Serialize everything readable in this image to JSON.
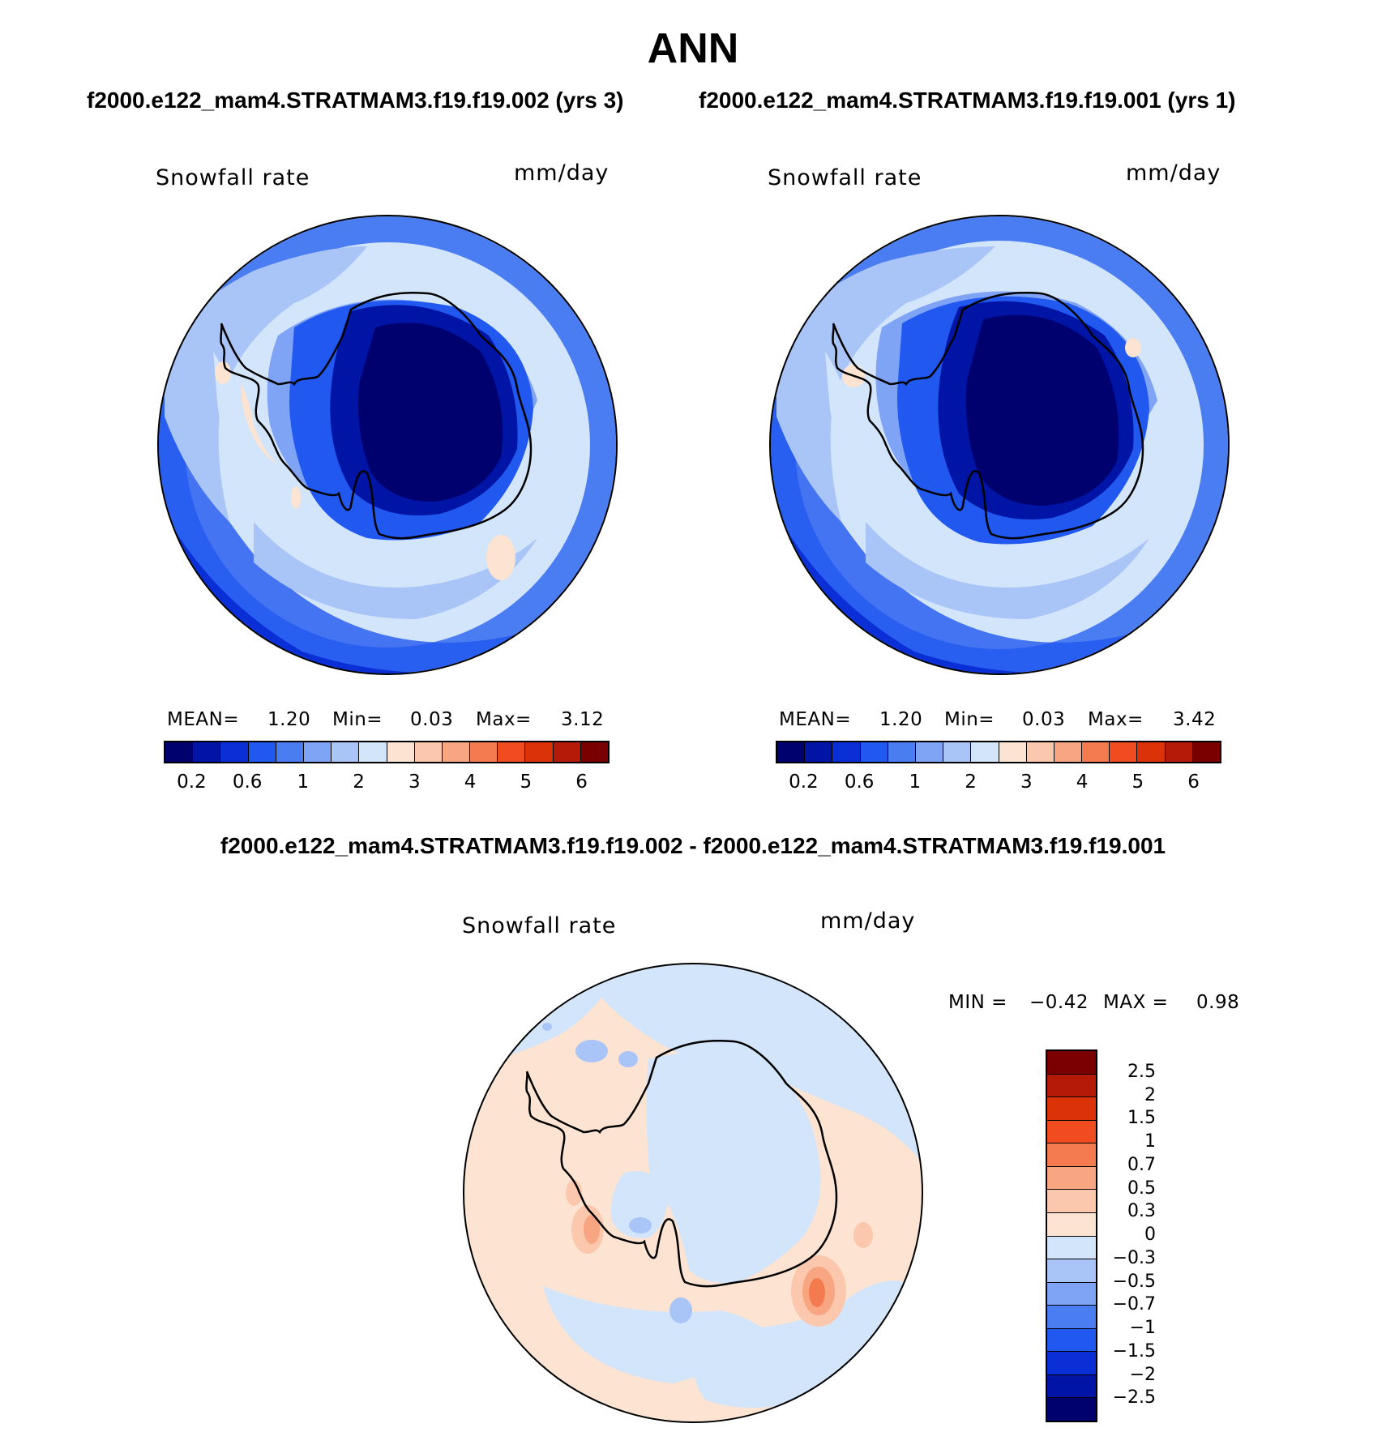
{
  "title": "ANN",
  "top_left_case": "f2000.e122_mam4.STRATMAM3.f19.f19.002 (yrs 3)",
  "top_right_case": "f2000.e122_mam4.STRATMAM3.f19.f19.001 (yrs 1)",
  "diff_title": "f2000.e122_mam4.STRATMAM3.f19.f19.002 - f2000.e122_mam4.STRATMAM3.f19.f19.001",
  "panels": {
    "left": {
      "variable": "Snowfall rate",
      "units": "mm/day",
      "mean_label": "MEAN=",
      "mean": "1.20",
      "min_label": "Min=",
      "min": "0.03",
      "max_label": "Max=",
      "max": "3.12"
    },
    "right": {
      "variable": "Snowfall rate",
      "units": "mm/day",
      "mean_label": "MEAN=",
      "mean": "1.20",
      "min_label": "Min=",
      "min": "0.03",
      "max_label": "Max=",
      "max": "3.42"
    },
    "diff": {
      "variable": "Snowfall rate",
      "units": "mm/day",
      "min_label": "MIN =",
      "min": "−0.42",
      "max_label": "MAX =",
      "max": "0.98"
    }
  },
  "abs_colorbar": {
    "colors": [
      "#00006e",
      "#0014a5",
      "#0a2fd6",
      "#2158f0",
      "#4a7cf2",
      "#7fa3f5",
      "#a9c5f8",
      "#d3e5fb",
      "#fde4d2",
      "#fbc7ad",
      "#f8a582",
      "#f47b4f",
      "#f04c1f",
      "#dc3208",
      "#b51a08",
      "#7a0000"
    ],
    "ticks": [
      "0.2",
      "0.6",
      "1",
      "2",
      "3",
      "4",
      "5",
      "6"
    ]
  },
  "diff_colorbar": {
    "colors": [
      "#7a0000",
      "#b51a08",
      "#dc3208",
      "#f04c1f",
      "#f47b4f",
      "#f8a582",
      "#fbc7ad",
      "#fde4d2",
      "#d3e5fb",
      "#a9c5f8",
      "#7fa3f5",
      "#4a7cf2",
      "#2158f0",
      "#0a2fd6",
      "#0014a5",
      "#00006e"
    ],
    "ticks": [
      "2.5",
      "2",
      "1.5",
      "1",
      "0.7",
      "0.5",
      "0.3",
      "0",
      "−0.3",
      "−0.5",
      "−0.7",
      "−1",
      "−1.5",
      "−2",
      "−2.5"
    ]
  }
}
